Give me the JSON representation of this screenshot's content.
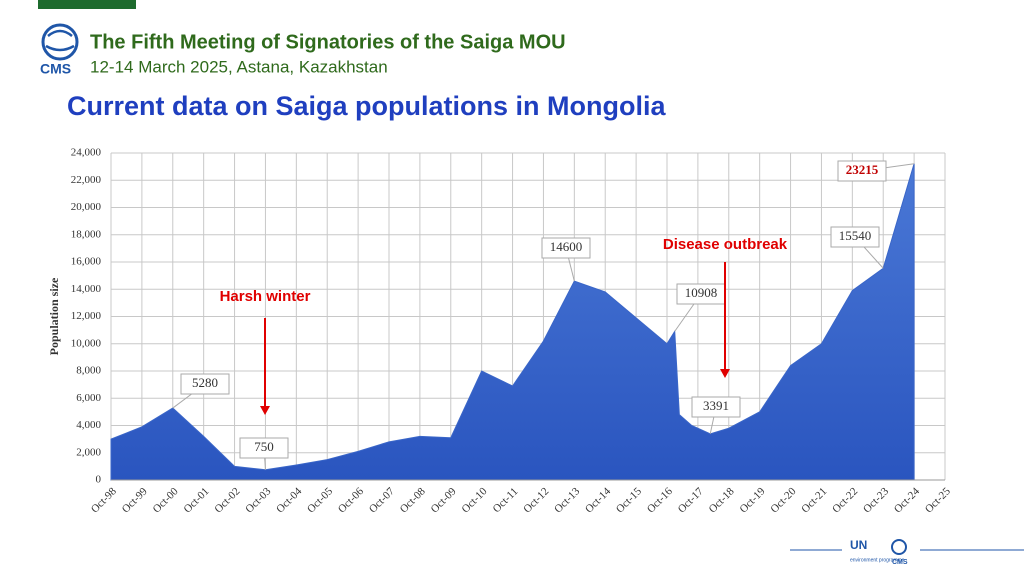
{
  "header": {
    "title": "The Fifth Meeting of Signatories of the Saiga MOU",
    "subtitle": "12-14 March 2025, Astana, Kazakhstan",
    "logo": "CMS"
  },
  "heading": "Current data on Saiga populations in Mongolia",
  "footer": {
    "un": "UN",
    "unep": "environment programme",
    "cms": "CMS"
  },
  "chart_data": {
    "type": "area",
    "color": "#3a66c8",
    "ylabel": "Population size",
    "x": [
      1998,
      1999,
      2000,
      2001,
      2002,
      2003,
      2004,
      2005,
      2006,
      2007,
      2008,
      2009,
      2010,
      2011,
      2012,
      2013,
      2014,
      2015,
      2016,
      2016.25,
      2016.4,
      2016.8,
      2017.4,
      2018,
      2019,
      2020,
      2021,
      2022,
      2023,
      2024
    ],
    "values": [
      3000,
      3900,
      5280,
      3200,
      1000,
      750,
      1100,
      1500,
      2100,
      2800,
      3200,
      3100,
      8000,
      6900,
      10200,
      14600,
      13800,
      11900,
      10000,
      10908,
      4800,
      4000,
      3391,
      3800,
      5000,
      8400,
      10000,
      13900,
      15540,
      23215
    ],
    "xlim": [
      1998,
      2025
    ],
    "xticks": [
      {
        "value": 1998,
        "label": "Oct-98"
      },
      {
        "value": 1999,
        "label": "Oct-99"
      },
      {
        "value": 2000,
        "label": "Oct-00"
      },
      {
        "value": 2001,
        "label": "Oct-01"
      },
      {
        "value": 2002,
        "label": "Oct-02"
      },
      {
        "value": 2003,
        "label": "Oct-03"
      },
      {
        "value": 2004,
        "label": "Oct-04"
      },
      {
        "value": 2005,
        "label": "Oct-05"
      },
      {
        "value": 2006,
        "label": "Oct-06"
      },
      {
        "value": 2007,
        "label": "Oct-07"
      },
      {
        "value": 2008,
        "label": "Oct-08"
      },
      {
        "value": 2009,
        "label": "Oct-09"
      },
      {
        "value": 2010,
        "label": "Oct-10"
      },
      {
        "value": 2011,
        "label": "Oct-11"
      },
      {
        "value": 2012,
        "label": "Oct-12"
      },
      {
        "value": 2013,
        "label": "Oct-13"
      },
      {
        "value": 2014,
        "label": "Oct-14"
      },
      {
        "value": 2015,
        "label": "Oct-15"
      },
      {
        "value": 2016,
        "label": "Oct-16"
      },
      {
        "value": 2017,
        "label": "Oct-17"
      },
      {
        "value": 2018,
        "label": "Oct-18"
      },
      {
        "value": 2019,
        "label": "Oct-19"
      },
      {
        "value": 2020,
        "label": "Oct-20"
      },
      {
        "value": 2021,
        "label": "Oct-21"
      },
      {
        "value": 2022,
        "label": "Oct-22"
      },
      {
        "value": 2023,
        "label": "Oct-23"
      },
      {
        "value": 2024,
        "label": "Oct-24"
      },
      {
        "value": 2025,
        "label": "Oct-25"
      }
    ],
    "ylim": [
      0,
      24000
    ],
    "yticks": [
      0,
      {
        "value": 2000,
        "label": "2,000"
      },
      {
        "value": 4000,
        "label": "4,000"
      },
      {
        "value": 6000,
        "label": "6,000"
      },
      {
        "value": 8000,
        "label": "8,000"
      },
      {
        "value": 10000,
        "label": "10,000"
      },
      {
        "value": 12000,
        "label": "12,000"
      },
      {
        "value": 14000,
        "label": "14,000"
      },
      {
        "value": 16000,
        "label": "16,000"
      },
      {
        "value": 18000,
        "label": "18,000"
      },
      {
        "value": 20000,
        "label": "20,000"
      },
      {
        "value": 22000,
        "label": "22,000"
      },
      {
        "value": 24000,
        "label": "24,000"
      }
    ],
    "grid": true,
    "annotations": [
      {
        "text": "Harsh winter",
        "color": "#e00000"
      },
      {
        "text": "Disease outbreak",
        "color": "#e00000"
      }
    ]
  }
}
